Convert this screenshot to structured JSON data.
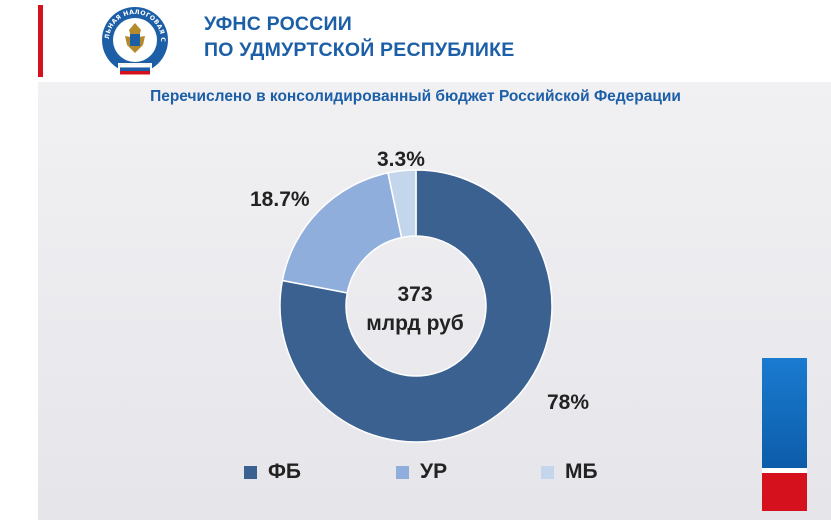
{
  "header": {
    "org_line1": "УФНС РОССИИ",
    "org_line2": "ПО УДМУРТСКОЙ РЕСПУБЛИКЕ",
    "emblem_text": "ФЕДЕРАЛЬНАЯ НАЛОГОВАЯ СЛУЖБА"
  },
  "colors": {
    "brand_blue": "#1d5fa7",
    "accent_red": "#d6111e"
  },
  "chart_data": {
    "type": "pie",
    "title": "Перечислено в консолидированный бюджет Российской Федерации",
    "center_label_line1": "373",
    "center_label_line2": "млрд руб",
    "categories": [
      "ФБ",
      "УР",
      "МБ"
    ],
    "values": [
      78,
      18.7,
      3.3
    ],
    "value_labels": [
      "78%",
      "18.7%",
      "3.3%"
    ],
    "colors": [
      "#3b6191",
      "#8faedb",
      "#c3d6ec"
    ],
    "donut": true,
    "legend_position": "bottom"
  }
}
